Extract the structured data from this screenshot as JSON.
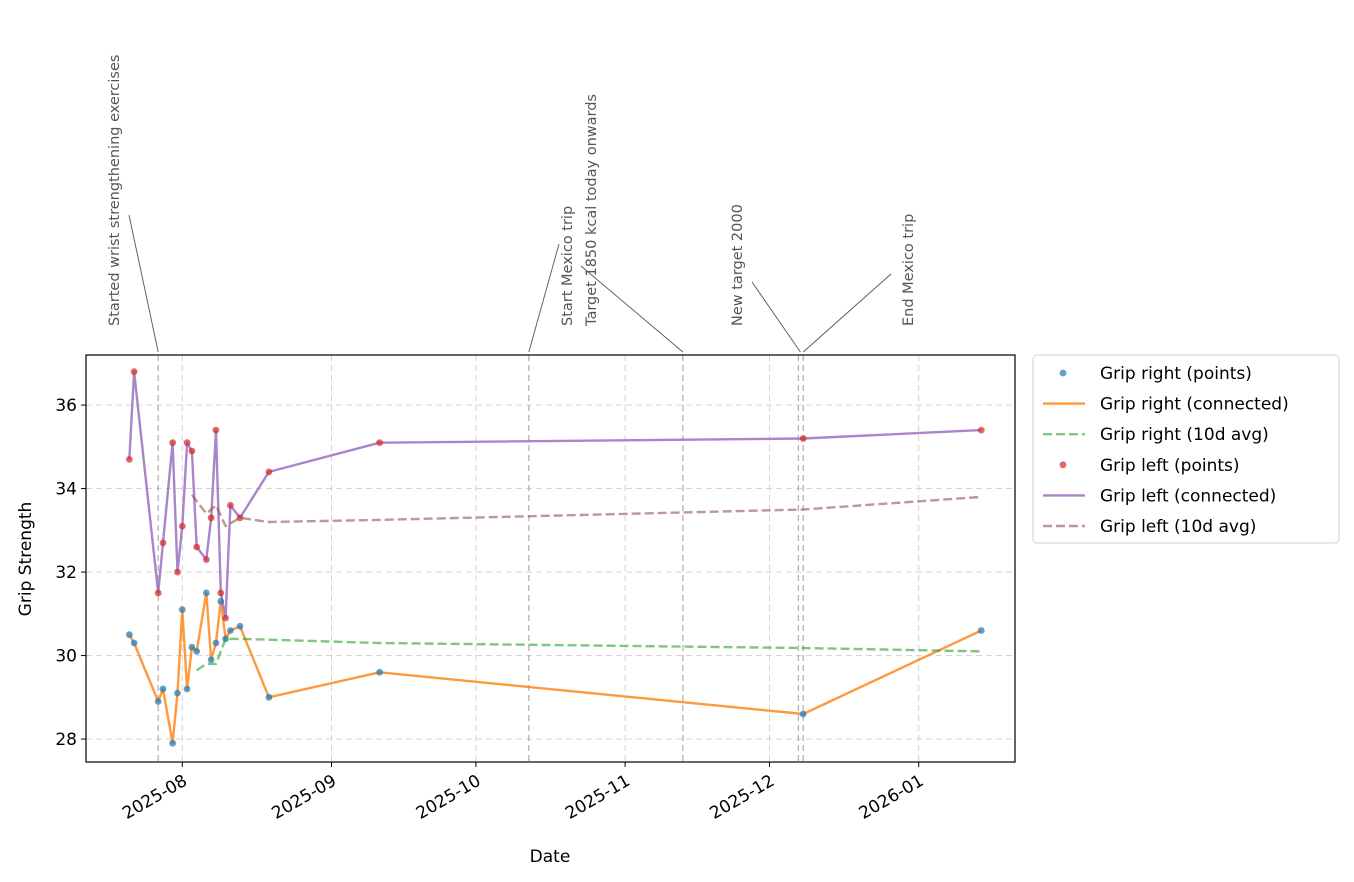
{
  "chart_data": {
    "type": "line",
    "title": "",
    "xlabel": "Date",
    "ylabel": "Grip Strength",
    "ylim": [
      27.45,
      37.2
    ],
    "xlim": [
      "2025-07-12",
      "2026-01-21"
    ],
    "x_ticks": [
      "2025-08",
      "2025-09",
      "2025-10",
      "2025-11",
      "2025-12",
      "2026-01"
    ],
    "y_ticks": [
      28,
      30,
      32,
      34,
      36
    ],
    "grid": true,
    "legend_position": "outside-right",
    "series": [
      {
        "name": "Grip right (points)",
        "style": "points",
        "color": "#1f77b4",
        "points": [
          [
            "2025-07-21",
            30.5
          ],
          [
            "2025-07-22",
            30.3
          ],
          [
            "2025-07-27",
            28.9
          ],
          [
            "2025-07-28",
            29.2
          ],
          [
            "2025-07-30",
            27.9
          ],
          [
            "2025-07-31",
            29.1
          ],
          [
            "2025-08-01",
            31.1
          ],
          [
            "2025-08-02",
            29.2
          ],
          [
            "2025-08-03",
            30.2
          ],
          [
            "2025-08-04",
            30.1
          ],
          [
            "2025-08-06",
            31.5
          ],
          [
            "2025-08-07",
            29.9
          ],
          [
            "2025-08-08",
            30.3
          ],
          [
            "2025-08-09",
            31.3
          ],
          [
            "2025-08-10",
            30.4
          ],
          [
            "2025-08-11",
            30.6
          ],
          [
            "2025-08-13",
            30.7
          ],
          [
            "2025-08-19",
            29.0
          ],
          [
            "2025-09-11",
            29.6
          ],
          [
            "2025-12-08",
            28.6
          ],
          [
            "2026-01-14",
            30.6
          ]
        ]
      },
      {
        "name": "Grip right (connected)",
        "style": "line",
        "color": "#ff7f0e",
        "points": [
          [
            "2025-07-21",
            30.5
          ],
          [
            "2025-07-22",
            30.3
          ],
          [
            "2025-07-27",
            28.9
          ],
          [
            "2025-07-28",
            29.2
          ],
          [
            "2025-07-30",
            27.9
          ],
          [
            "2025-07-31",
            29.1
          ],
          [
            "2025-08-01",
            31.1
          ],
          [
            "2025-08-02",
            29.2
          ],
          [
            "2025-08-03",
            30.2
          ],
          [
            "2025-08-04",
            30.1
          ],
          [
            "2025-08-06",
            31.5
          ],
          [
            "2025-08-07",
            29.9
          ],
          [
            "2025-08-08",
            30.3
          ],
          [
            "2025-08-09",
            31.3
          ],
          [
            "2025-08-10",
            30.4
          ],
          [
            "2025-08-11",
            30.6
          ],
          [
            "2025-08-13",
            30.7
          ],
          [
            "2025-08-19",
            29.0
          ],
          [
            "2025-09-11",
            29.6
          ],
          [
            "2025-12-08",
            28.6
          ],
          [
            "2026-01-14",
            30.6
          ]
        ]
      },
      {
        "name": "Grip right (10d avg)",
        "style": "dashed",
        "color": "#2ca02c",
        "points": [
          [
            "2025-08-04",
            29.65
          ],
          [
            "2025-08-06",
            29.8
          ],
          [
            "2025-08-08",
            29.8
          ],
          [
            "2025-08-09",
            30.1
          ],
          [
            "2025-08-10",
            30.4
          ],
          [
            "2025-08-13",
            30.4
          ],
          [
            "2025-08-19",
            30.38
          ],
          [
            "2025-09-11",
            30.3
          ],
          [
            "2025-12-08",
            30.18
          ],
          [
            "2026-01-14",
            30.1
          ]
        ]
      },
      {
        "name": "Grip left (points)",
        "style": "points",
        "color": "#d62728",
        "points": [
          [
            "2025-07-21",
            34.7
          ],
          [
            "2025-07-22",
            36.8
          ],
          [
            "2025-07-27",
            31.5
          ],
          [
            "2025-07-28",
            32.7
          ],
          [
            "2025-07-30",
            35.1
          ],
          [
            "2025-07-31",
            32.0
          ],
          [
            "2025-08-01",
            33.1
          ],
          [
            "2025-08-02",
            35.1
          ],
          [
            "2025-08-03",
            34.9
          ],
          [
            "2025-08-04",
            32.6
          ],
          [
            "2025-08-06",
            32.3
          ],
          [
            "2025-08-07",
            33.3
          ],
          [
            "2025-08-08",
            35.4
          ],
          [
            "2025-08-09",
            31.5
          ],
          [
            "2025-08-10",
            30.9
          ],
          [
            "2025-08-11",
            33.6
          ],
          [
            "2025-08-13",
            33.3
          ],
          [
            "2025-08-19",
            34.4
          ],
          [
            "2025-09-11",
            35.1
          ],
          [
            "2025-12-08",
            35.2
          ],
          [
            "2026-01-14",
            35.4
          ]
        ]
      },
      {
        "name": "Grip left (connected)",
        "style": "line",
        "color": "#9467bd",
        "points": [
          [
            "2025-07-21",
            34.7
          ],
          [
            "2025-07-22",
            36.8
          ],
          [
            "2025-07-27",
            31.5
          ],
          [
            "2025-07-28",
            32.7
          ],
          [
            "2025-07-30",
            35.1
          ],
          [
            "2025-07-31",
            32.0
          ],
          [
            "2025-08-01",
            33.1
          ],
          [
            "2025-08-02",
            35.1
          ],
          [
            "2025-08-03",
            34.9
          ],
          [
            "2025-08-04",
            32.6
          ],
          [
            "2025-08-06",
            32.3
          ],
          [
            "2025-08-07",
            33.3
          ],
          [
            "2025-08-08",
            35.4
          ],
          [
            "2025-08-09",
            31.5
          ],
          [
            "2025-08-10",
            30.9
          ],
          [
            "2025-08-11",
            33.6
          ],
          [
            "2025-08-13",
            33.3
          ],
          [
            "2025-08-19",
            34.4
          ],
          [
            "2025-09-11",
            35.1
          ],
          [
            "2025-12-08",
            35.2
          ],
          [
            "2026-01-14",
            35.4
          ]
        ]
      },
      {
        "name": "Grip left (10d avg)",
        "style": "dashed",
        "color": "#8c564b",
        "points": [
          [
            "2025-08-03",
            33.85
          ],
          [
            "2025-08-06",
            33.4
          ],
          [
            "2025-08-08",
            33.6
          ],
          [
            "2025-08-10",
            33.1
          ],
          [
            "2025-08-13",
            33.3
          ],
          [
            "2025-08-19",
            33.2
          ],
          [
            "2025-09-11",
            33.25
          ],
          [
            "2025-12-08",
            33.5
          ],
          [
            "2026-01-14",
            33.8
          ]
        ]
      }
    ],
    "annotations": [
      {
        "date": "2025-07-27",
        "text": [
          "Started wrist strengthening exercises"
        ]
      },
      {
        "date": "2025-10-12",
        "text": [
          "Start Mexico trip",
          "Target 1850 kcal today onwards"
        ]
      },
      {
        "date": "2025-11-13",
        "text": []
      },
      {
        "date": "2025-12-07",
        "text": [
          "New target 2000"
        ]
      },
      {
        "date": "2025-12-08",
        "text": [
          "End Mexico trip"
        ]
      }
    ]
  }
}
